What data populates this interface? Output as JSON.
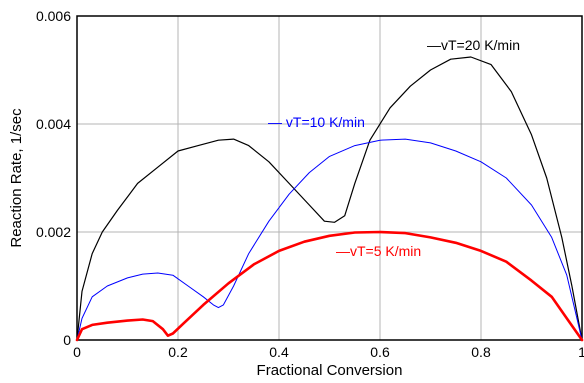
{
  "chart_data": {
    "type": "line",
    "xlabel": "Fractional Conversion",
    "ylabel": "Reaction Rate, 1/sec",
    "xlim": [
      0,
      1
    ],
    "ylim": [
      0,
      0.006
    ],
    "xticks": [
      0,
      0.2,
      0.4,
      0.6,
      0.8,
      1
    ],
    "xtick_labels": [
      "0",
      "0.2",
      "0.4",
      "0.6",
      "0.8",
      "1"
    ],
    "yticks": [
      0,
      0.002,
      0.004,
      0.006
    ],
    "ytick_labels": [
      "0",
      "0.002",
      "0.004",
      "0.006"
    ],
    "grid": true,
    "series": [
      {
        "name": "vT=20 K/min",
        "label": "—vT=20 K/min",
        "color": "#000000",
        "x": [
          0,
          0.01,
          0.03,
          0.05,
          0.08,
          0.12,
          0.16,
          0.2,
          0.24,
          0.28,
          0.31,
          0.34,
          0.38,
          0.42,
          0.46,
          0.49,
          0.51,
          0.53,
          0.55,
          0.58,
          0.62,
          0.66,
          0.7,
          0.74,
          0.78,
          0.82,
          0.86,
          0.9,
          0.93,
          0.96,
          0.98,
          1.0
        ],
        "y": [
          0,
          0.0009,
          0.0016,
          0.002,
          0.0024,
          0.0029,
          0.0032,
          0.0035,
          0.0036,
          0.0037,
          0.00372,
          0.0036,
          0.0033,
          0.0029,
          0.0025,
          0.0022,
          0.00218,
          0.0023,
          0.0029,
          0.0037,
          0.0043,
          0.0047,
          0.005,
          0.0052,
          0.00524,
          0.0051,
          0.0046,
          0.0038,
          0.003,
          0.0019,
          0.001,
          0
        ]
      },
      {
        "name": "vT=10 K/min",
        "label": "— vT=10 K/min",
        "color": "#0000ff",
        "x": [
          0,
          0.01,
          0.03,
          0.06,
          0.1,
          0.13,
          0.16,
          0.19,
          0.22,
          0.25,
          0.27,
          0.28,
          0.29,
          0.31,
          0.34,
          0.38,
          0.42,
          0.46,
          0.5,
          0.55,
          0.6,
          0.65,
          0.7,
          0.75,
          0.8,
          0.85,
          0.9,
          0.94,
          0.97,
          1.0
        ],
        "y": [
          0,
          0.0004,
          0.0008,
          0.001,
          0.00115,
          0.00122,
          0.00124,
          0.0012,
          0.001,
          0.0008,
          0.00065,
          0.0006,
          0.00065,
          0.001,
          0.0016,
          0.0022,
          0.0027,
          0.0031,
          0.0034,
          0.0036,
          0.0037,
          0.00372,
          0.00365,
          0.0035,
          0.0033,
          0.003,
          0.0025,
          0.0019,
          0.0012,
          0
        ]
      },
      {
        "name": "vT=5 K/min",
        "label": "—vT=5 K/min",
        "color": "#ff0000",
        "x": [
          0,
          0.01,
          0.03,
          0.06,
          0.1,
          0.13,
          0.15,
          0.17,
          0.18,
          0.19,
          0.21,
          0.25,
          0.3,
          0.35,
          0.4,
          0.45,
          0.5,
          0.55,
          0.6,
          0.65,
          0.7,
          0.75,
          0.8,
          0.85,
          0.9,
          0.94,
          0.97,
          1.0
        ],
        "y": [
          0,
          0.0002,
          0.00028,
          0.00032,
          0.00036,
          0.00038,
          0.00035,
          0.0002,
          8e-05,
          0.00012,
          0.0003,
          0.00065,
          0.00105,
          0.0014,
          0.00165,
          0.00182,
          0.00193,
          0.00199,
          0.002,
          0.00198,
          0.0019,
          0.0018,
          0.00165,
          0.00145,
          0.0011,
          0.0008,
          0.0004,
          0
        ]
      }
    ]
  }
}
